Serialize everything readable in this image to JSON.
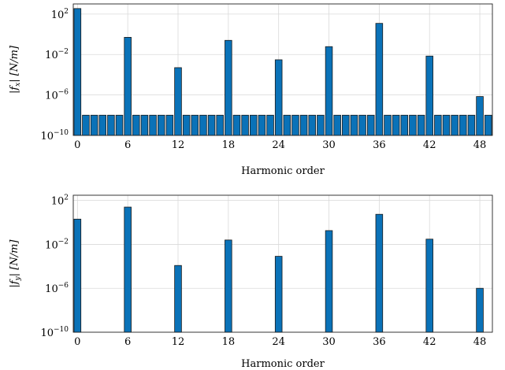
{
  "colors": {
    "bar": "#0a72b8",
    "grid": "#d9d9d9",
    "frame": "#222222"
  },
  "chart_data": [
    {
      "type": "bar",
      "ylabel": "|f_x| [N/m]",
      "xlabel": "Harmonic order",
      "yscale": "log",
      "ylim": [
        1e-10,
        1000
      ],
      "xlim": [
        -0.5,
        49.5
      ],
      "xticks": [
        0,
        6,
        12,
        18,
        24,
        30,
        36,
        42,
        48
      ],
      "yticks": [
        1e-10,
        1e-06,
        0.01,
        100
      ],
      "ytick_labels": [
        {
          "base": "10",
          "exp": "−10"
        },
        {
          "base": "10",
          "exp": "−6"
        },
        {
          "base": "10",
          "exp": "−2"
        },
        {
          "base": "10",
          "exp": "2"
        }
      ],
      "grid": true,
      "x": [
        0,
        1,
        2,
        3,
        4,
        5,
        6,
        7,
        8,
        9,
        10,
        11,
        12,
        13,
        14,
        15,
        16,
        17,
        18,
        19,
        20,
        21,
        22,
        23,
        24,
        25,
        26,
        27,
        27.999,
        29,
        30,
        31,
        32,
        33,
        34,
        35,
        36,
        37,
        38,
        39,
        40,
        41,
        42,
        43,
        44,
        45,
        46,
        47,
        48,
        49
      ],
      "values": [
        350,
        1e-08,
        1e-08,
        1e-08,
        1e-08,
        1e-08,
        0.5,
        1e-08,
        1e-08,
        1e-08,
        1e-08,
        1e-08,
        0.0005,
        1e-08,
        1e-08,
        1e-08,
        1e-08,
        1e-08,
        0.25,
        1e-08,
        1e-08,
        1e-08,
        1e-08,
        1e-08,
        0.003,
        1e-08,
        1e-08,
        1e-08,
        1e-08,
        1e-08,
        0.06,
        1e-08,
        1e-08,
        1e-08,
        1e-08,
        1e-08,
        12,
        1e-08,
        1e-08,
        1e-08,
        1e-08,
        1e-08,
        0.007,
        1e-08,
        1e-08,
        1e-08,
        1e-08,
        1e-08,
        7e-07,
        1e-08
      ]
    },
    {
      "type": "bar",
      "ylabel": "|f_y| [N/m]",
      "xlabel": "Harmonic order",
      "yscale": "log",
      "ylim": [
        1e-10,
        300
      ],
      "xlim": [
        -0.5,
        49.5
      ],
      "xticks": [
        0,
        6,
        12,
        18,
        24,
        30,
        36,
        42,
        48
      ],
      "yticks": [
        1e-10,
        1e-06,
        0.01,
        100
      ],
      "ytick_labels": [
        {
          "base": "10",
          "exp": "−10"
        },
        {
          "base": "10",
          "exp": "−6"
        },
        {
          "base": "10",
          "exp": "−2"
        },
        {
          "base": "10",
          "exp": "2"
        }
      ],
      "grid": true,
      "x": [
        0,
        6,
        12,
        18,
        24,
        30,
        36,
        42,
        48
      ],
      "values": [
        2,
        25,
        0.00012,
        0.025,
        0.00082,
        0.18,
        5.5,
        0.03,
        1e-06
      ]
    }
  ]
}
